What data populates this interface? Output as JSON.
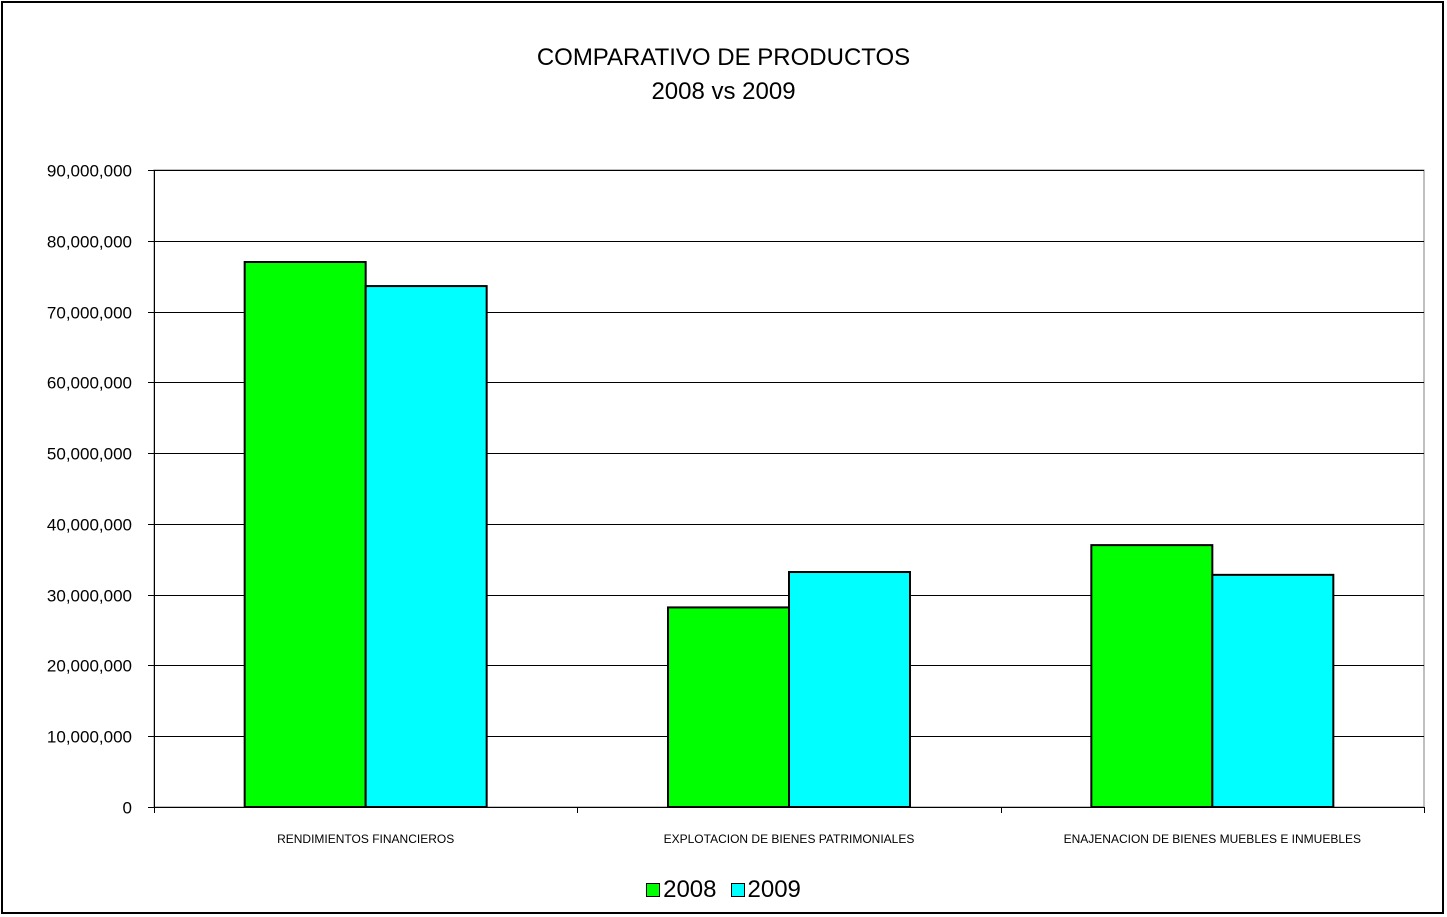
{
  "chart_data": {
    "type": "bar",
    "title": "COMPARATIVO DE PRODUCTOS",
    "subtitle": "2008 vs 2009",
    "xlabel": "",
    "ylabel": "",
    "categories": [
      "RENDIMIENTOS FINANCIEROS",
      "EXPLOTACION DE BIENES PATRIMONIALES",
      "ENAJENACION DE BIENES MUEBLES E INMUEBLES"
    ],
    "series": [
      {
        "name": "2008",
        "color": "#00ff00",
        "values": [
          77000000,
          28200000,
          37000000
        ]
      },
      {
        "name": "2009",
        "color": "#00ffff",
        "values": [
          73600000,
          33200000,
          32800000
        ]
      }
    ],
    "ylim": [
      0,
      90000000
    ],
    "yticks": [
      0,
      10000000,
      20000000,
      30000000,
      40000000,
      50000000,
      60000000,
      70000000,
      80000000,
      90000000
    ],
    "ytick_labels": [
      "0",
      "10,000,000",
      "20,000,000",
      "30,000,000",
      "40,000,000",
      "50,000,000",
      "60,000,000",
      "70,000,000",
      "80,000,000",
      "90,000,000"
    ],
    "grid": true,
    "legend_position": "bottom"
  }
}
